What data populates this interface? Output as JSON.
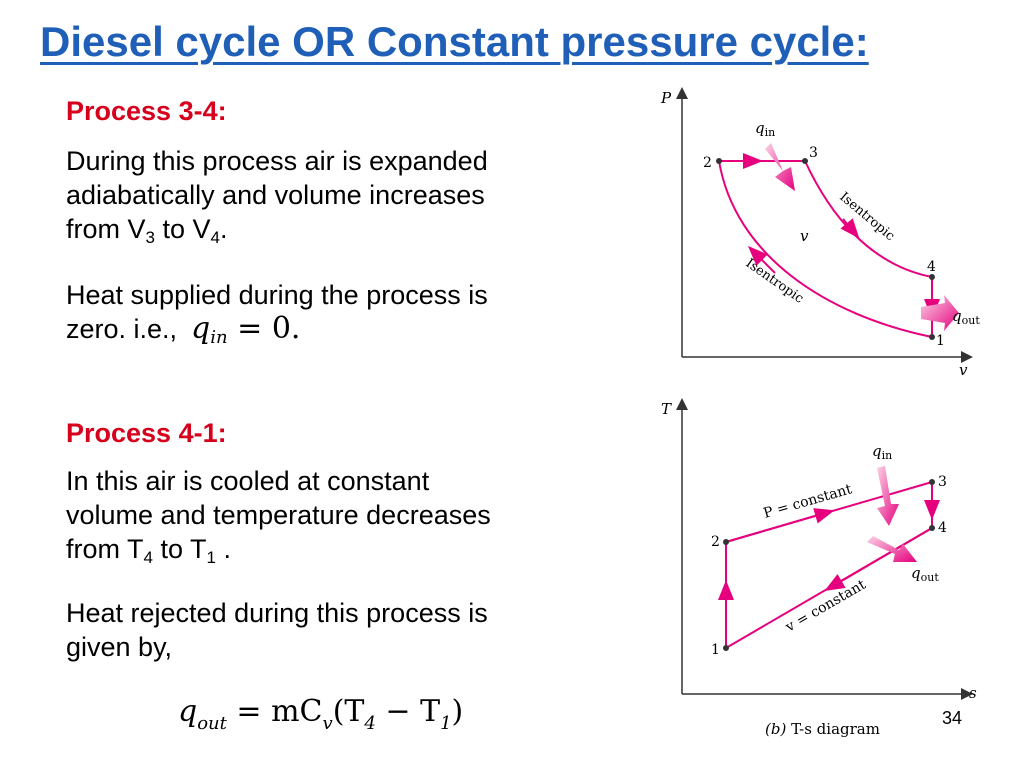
{
  "title": "Diesel cycle OR Constant pressure cycle:",
  "process34": {
    "heading": "Process 3-4:",
    "para1": {
      "line1": "During this process air is expanded",
      "line2": "adiabatically and volume increases",
      "from": "from V",
      "sub_a": "3",
      "to": " to V",
      "sub_b": "4",
      "end": "."
    },
    "para2": {
      "line1": "Heat supplied during the process is",
      "line2": "zero. i.e.,",
      "eq_q": "q",
      "eq_sub": "in",
      "eq_rest": " = 0."
    }
  },
  "process41": {
    "heading": "Process 4-1:",
    "para1": {
      "line1": "In this air is cooled at constant",
      "line2": "volume and temperature decreases",
      "from": "from T",
      "sub_a": "4",
      "to": " to T",
      "sub_b": "1",
      "end": " ."
    },
    "para2": {
      "line1": "Heat rejected during this process is",
      "line2": "given by,"
    },
    "equation": {
      "q": "q",
      "q_sub": "out",
      "eq": " = mC",
      "c_sub": "v",
      "open": "(T",
      "t4_sub": "4",
      "minus": " − T",
      "t1_sub": "1",
      "close": ")"
    }
  },
  "pv_diagram": {
    "y_axis": "P",
    "x_axis": "v",
    "points": [
      "1",
      "2",
      "3",
      "4"
    ],
    "q_in": "q",
    "q_in_sub": "in",
    "q_out": "q",
    "q_out_sub": "out",
    "isentropic_upper": "Isentropic",
    "isentropic_lower": "Isentropic",
    "center_label": "v"
  },
  "ts_diagram": {
    "y_axis": "T",
    "x_axis": "s",
    "points": [
      "1",
      "2",
      "3",
      "4"
    ],
    "q_in": "q",
    "q_in_sub": "in",
    "q_out": "q",
    "q_out_sub": "out",
    "p_constant": "P = constant",
    "v_constant": "v = constant",
    "caption_prefix": "(b) ",
    "caption": "T-s diagram"
  },
  "slide_number": "34",
  "colors": {
    "title": "#1f5fb8",
    "heading": "#d6001c",
    "curve": "#e6007e",
    "axis": "#333333"
  }
}
